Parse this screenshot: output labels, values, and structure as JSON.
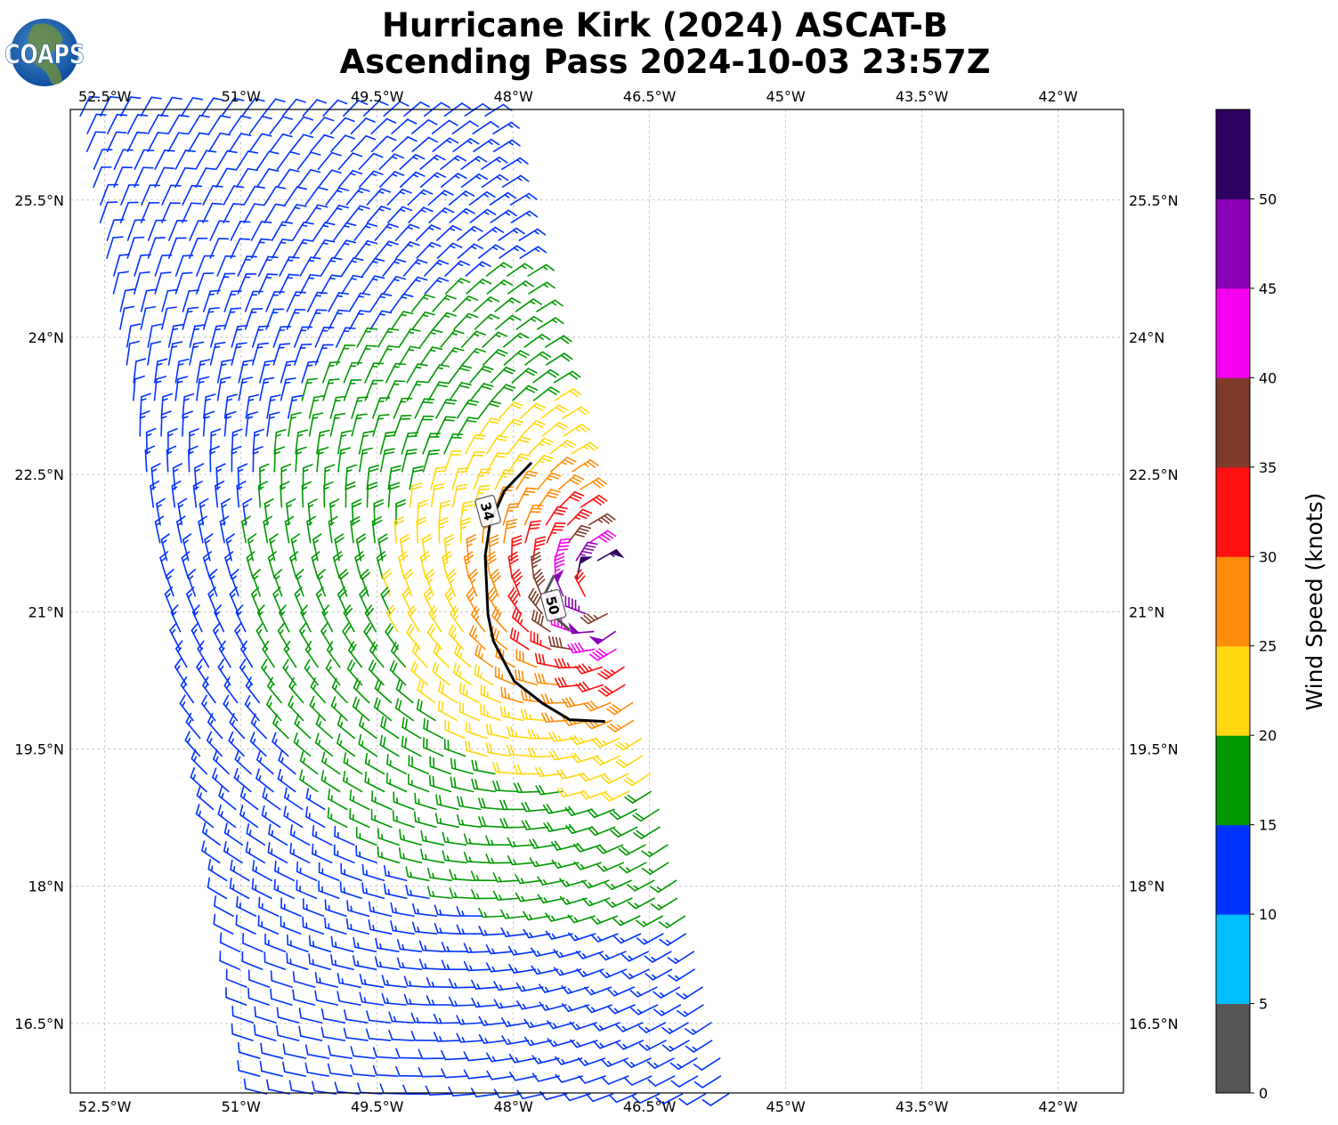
{
  "chart_data": {
    "type": "scatter",
    "subtype": "wind-barb-map",
    "title_line1": "Hurricane Kirk (2024) ASCAT-B",
    "title_line2": "Ascending Pass 2024-10-03 23:57Z",
    "logo_text": "COAPS",
    "x_ticks": [
      -52.5,
      -51,
      -49.5,
      -48,
      -46.5,
      -45,
      -43.5,
      -42
    ],
    "x_tick_labels": [
      "52.5°W",
      "51°W",
      "49.5°W",
      "48°W",
      "46.5°W",
      "45°W",
      "43.5°W",
      "42°W"
    ],
    "y_ticks": [
      25.5,
      24,
      22.5,
      21,
      19.5,
      18,
      16.5
    ],
    "y_tick_labels": [
      "25.5°N",
      "24°N",
      "22.5°N",
      "21°N",
      "19.5°N",
      "18°N",
      "16.5°N"
    ],
    "xlim": [
      -52.88,
      -41.28
    ],
    "ylim": [
      15.74,
      26.49
    ],
    "grid": true,
    "colorbar": {
      "label": "Wind Speed (knots)",
      "bounds": [
        0,
        5,
        10,
        15,
        20,
        25,
        30,
        35,
        40,
        45,
        50,
        55
      ],
      "tick_labels": [
        "0",
        "5",
        "10",
        "15",
        "20",
        "25",
        "30",
        "35",
        "40",
        "45",
        "50"
      ],
      "colors": [
        "#555555",
        "#00bfff",
        "#0033ff",
        "#009900",
        "#ffd811",
        "#ff8c0a",
        "#ff1010",
        "#7f3b2a",
        "#f400ee",
        "#8a00b4",
        "#2e0060"
      ]
    },
    "swath": {
      "left_edge": [
        [
          -52.77,
          26.42
        ],
        [
          -50.76,
          15.73
        ]
      ],
      "right_edge": [
        [
          -48.31,
          26.42
        ],
        [
          -45.67,
          15.73
        ]
      ]
    },
    "storm_center": {
      "lon": -47.0,
      "lat": 21.2
    },
    "max_wind_kt": 55,
    "radius_max_wind_deg": 0.35,
    "contours": [
      {
        "level": "34",
        "color": "#000000",
        "points": [
          [
            -47.8,
            22.63
          ],
          [
            -48.1,
            22.32
          ],
          [
            -48.26,
            21.95
          ],
          [
            -48.31,
            21.61
          ],
          [
            -48.28,
            20.97
          ],
          [
            -48.22,
            20.68
          ],
          [
            -47.99,
            20.24
          ],
          [
            -47.68,
            20.0
          ],
          [
            -47.38,
            19.82
          ],
          [
            -46.99,
            19.8
          ]
        ],
        "label_at": [
          -48.28,
          22.1
        ]
      },
      {
        "level": "50",
        "color": "#555555",
        "points": [
          [
            -47.55,
            21.4
          ],
          [
            -47.65,
            21.2
          ],
          [
            -47.55,
            20.95
          ],
          [
            -47.38,
            20.8
          ]
        ],
        "label_at": [
          -47.56,
          21.07
        ]
      }
    ]
  }
}
